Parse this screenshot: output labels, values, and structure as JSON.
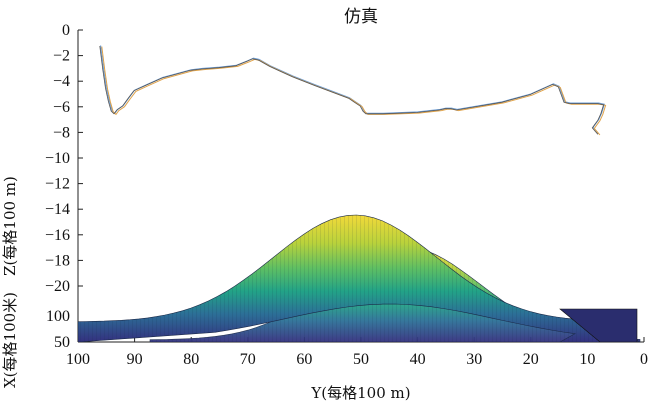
{
  "chart_data": {
    "type": "surface-3d-with-trajectory",
    "title": "仿真",
    "xlabel": "Y(每格100 m)",
    "ylabel": "Z(每格100 m)",
    "depth_label": "X(每格100米)",
    "z_ticks": [
      "0",
      "−2",
      "−4",
      "−6",
      "−8",
      "−10",
      "−12",
      "−14",
      "−16",
      "−18",
      "−20"
    ],
    "x_ticks_labels": [
      "100",
      "90",
      "80",
      "70",
      "60",
      "50",
      "40",
      "30",
      "20",
      "10",
      "0"
    ],
    "x_ticks_values": [
      100,
      90,
      80,
      70,
      60,
      50,
      40,
      30,
      20,
      10,
      0
    ],
    "depth_ticks": [
      "100",
      "50"
    ],
    "xlim": [
      100,
      0
    ],
    "zlim": [
      -20,
      0
    ],
    "terrain_peak_z": -14.3,
    "trajectory": {
      "y": [
        96,
        95.5,
        95,
        94.5,
        94,
        93.5,
        93,
        92,
        91,
        90,
        88,
        85,
        80,
        78,
        75,
        72,
        70,
        69,
        68,
        66,
        64,
        62,
        58,
        55,
        52,
        51,
        50,
        49.5,
        49,
        48.5,
        47.5,
        46,
        40,
        36,
        35,
        34,
        33,
        25,
        20,
        16,
        15,
        14,
        13,
        10,
        8,
        7,
        7.5,
        8,
        8.5,
        9,
        8
      ],
      "z": [
        -1.2,
        -3,
        -4.5,
        -5.5,
        -6.3,
        -6.5,
        -6.2,
        -5.9,
        -5.3,
        -4.7,
        -4.3,
        -3.7,
        -3.1,
        -3,
        -2.9,
        -2.75,
        -2.4,
        -2.2,
        -2.3,
        -2.8,
        -3.2,
        -3.6,
        -4.3,
        -4.8,
        -5.3,
        -5.6,
        -5.9,
        -6.3,
        -6.5,
        -6.5,
        -6.5,
        -6.5,
        -6.4,
        -6.2,
        -6.1,
        -6.1,
        -6.2,
        -5.6,
        -5,
        -4.2,
        -4.4,
        -5.6,
        -5.7,
        -5.7,
        -5.7,
        -5.8,
        -6.5,
        -7,
        -7.3,
        -7.6,
        -8.1
      ]
    }
  }
}
